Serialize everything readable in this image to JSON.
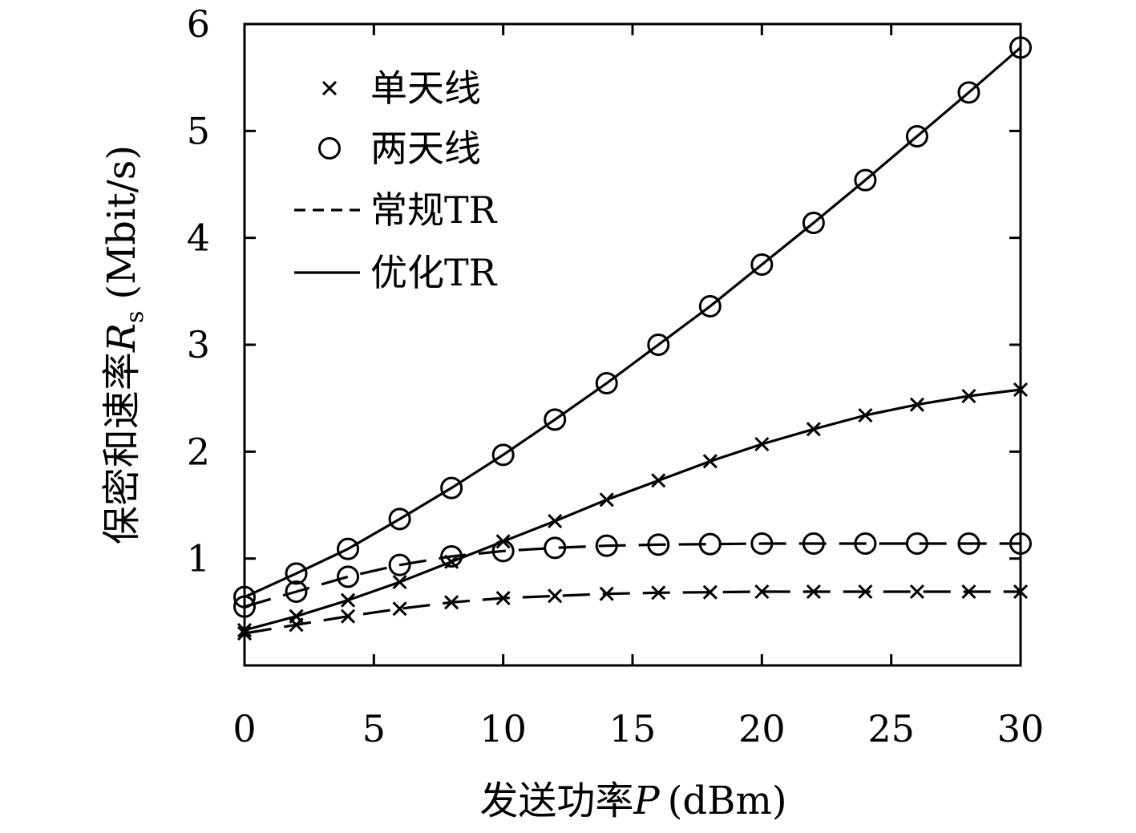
{
  "chart_data": {
    "type": "line",
    "xlabel": "发送功率",
    "xlabel_var": "P",
    "xlabel_unit": "(dBm)",
    "ylabel": "保密和速率",
    "ylabel_var": "R",
    "ylabel_sub": "s",
    "ylabel_unit": "(Mbit/s)",
    "xlim": [
      0,
      30
    ],
    "ylim": [
      0,
      6
    ],
    "xticks": [
      0,
      5,
      10,
      15,
      20,
      25,
      30
    ],
    "yticks": [
      1,
      2,
      3,
      4,
      5,
      6
    ],
    "grid": false,
    "legend_position": "top-left",
    "legend": [
      {
        "label": "单天线",
        "kind": "marker",
        "marker": "x"
      },
      {
        "label": "两天线",
        "kind": "marker",
        "marker": "o"
      },
      {
        "label": "常规TR",
        "kind": "line",
        "dash": "dashed"
      },
      {
        "label": "优化TR",
        "kind": "line",
        "dash": "solid"
      }
    ],
    "x": [
      0,
      2,
      4,
      6,
      8,
      10,
      12,
      14,
      16,
      18,
      20,
      22,
      24,
      26,
      28,
      30
    ],
    "series": [
      {
        "marker": "o",
        "dash": "solid",
        "values": [
          0.64,
          0.86,
          1.09,
          1.37,
          1.66,
          1.97,
          2.3,
          2.64,
          3.0,
          3.36,
          3.75,
          4.14,
          4.54,
          4.95,
          5.36,
          5.78
        ]
      },
      {
        "marker": "x",
        "dash": "solid",
        "values": [
          0.33,
          0.46,
          0.61,
          0.78,
          0.97,
          1.16,
          1.35,
          1.55,
          1.73,
          1.91,
          2.07,
          2.21,
          2.34,
          2.44,
          2.52,
          2.58
        ]
      },
      {
        "marker": "o",
        "dash": "dashed",
        "values": [
          0.55,
          0.69,
          0.83,
          0.94,
          1.02,
          1.07,
          1.1,
          1.12,
          1.13,
          1.135,
          1.14,
          1.14,
          1.14,
          1.14,
          1.14,
          1.14
        ]
      },
      {
        "marker": "x",
        "dash": "dashed",
        "values": [
          0.3,
          0.38,
          0.46,
          0.53,
          0.59,
          0.63,
          0.65,
          0.67,
          0.68,
          0.685,
          0.69,
          0.69,
          0.69,
          0.69,
          0.69,
          0.69
        ]
      }
    ]
  }
}
